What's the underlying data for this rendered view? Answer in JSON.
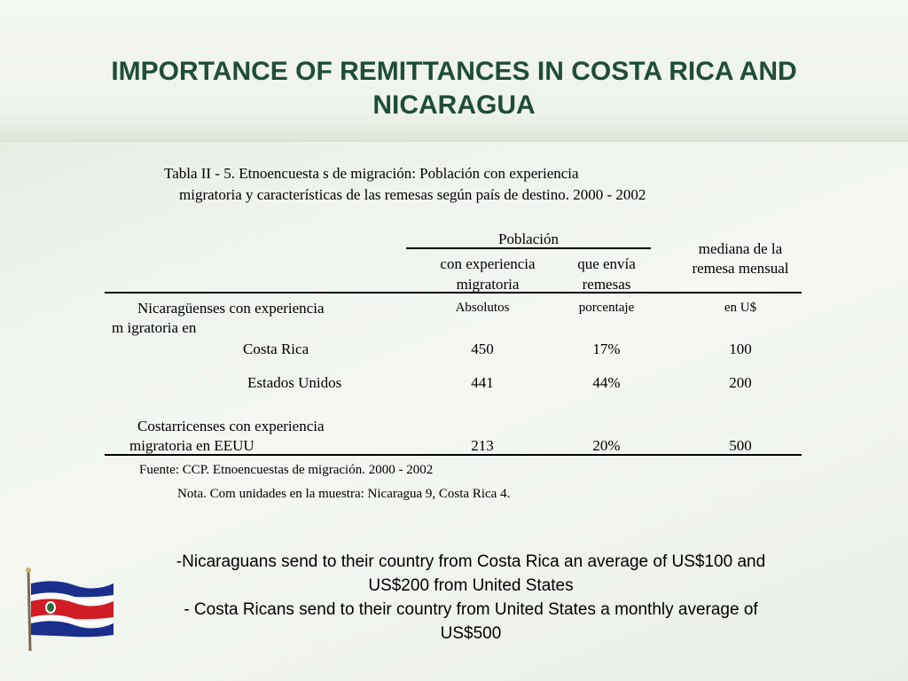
{
  "title": {
    "line1": "IMPORTANCE OF REMITTANCES IN COSTA RICA AND",
    "line2": "NICARAGUA"
  },
  "table": {
    "caption_line1": "Tabla II -    5. Etnoencuesta           s de migración: Población con experiencia",
    "caption_line2": "migratoria y características de las remesas según país de destino. 2000         - 2002",
    "header_group": "Población",
    "col1": {
      "line1": "con experiencia",
      "line2": "migratoria",
      "unit": "Absolutos"
    },
    "col2": {
      "line1": "que envía",
      "line2": "remesas",
      "unit": "porcentaje"
    },
    "col3": {
      "line1": "mediana de la",
      "line2": "remesa mensual",
      "unit": "en U$"
    },
    "group1": {
      "line1": "Nicaragüenses con experiencia",
      "line2": "m   igratoria en"
    },
    "rows": [
      {
        "label": "Costa Rica",
        "abs": "450",
        "pct": "17%",
        "med": "100"
      },
      {
        "label": "Estados Unidos",
        "abs": "441",
        "pct": "44%",
        "med": "200"
      }
    ],
    "group2": {
      "line1": "Costarricenses con experiencia",
      "line2": "migratoria en EEUU",
      "abs": "213",
      "pct": "20%",
      "med": "500"
    },
    "source": "Fuente: CCP. Etnoencuestas de migración. 2000     - 2002",
    "note": "Nota. Com          unidades en la muestra: Nicaragua 9, Costa Rica 4."
  },
  "bullets": {
    "b1_line1": "-Nicaraguans send to their country from Costa Rica an average of US$100 and",
    "b1_line2": "US$200 from United States",
    "b2_line1": "- Costa Ricans send to their country from United States a monthly average of",
    "b2_line2": "US$500"
  },
  "icons": {
    "flag": "costa-rica-flag-icon"
  },
  "colors": {
    "title": "#1f4d3a",
    "flag_blue": "#1a2f8c",
    "flag_red": "#d01c24"
  }
}
